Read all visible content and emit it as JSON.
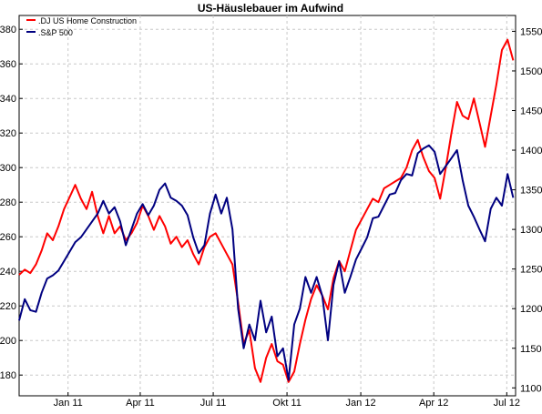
{
  "chart_data": {
    "type": "line",
    "title": "US-Häuslebauer im Aufwind",
    "x_tick_labels": [
      "Jan 11",
      "Apr 11",
      "Jul 11",
      "Okt 11",
      "Jan 12",
      "Apr 12",
      "Jul 12"
    ],
    "x_range": [
      "2010-11-01",
      "2012-07-12"
    ],
    "y_left": {
      "ylim": [
        168,
        388
      ],
      "ticks": [
        180,
        200,
        220,
        240,
        260,
        280,
        300,
        320,
        340,
        360,
        380
      ]
    },
    "y_right": {
      "ylim": [
        1090,
        1570
      ],
      "ticks": [
        1100,
        1150,
        1200,
        1250,
        1300,
        1350,
        1400,
        1450,
        1500,
        1550
      ]
    },
    "grid": true,
    "legend_position": "top-left",
    "series": [
      {
        "name": ".DJ US Home Construction",
        "axis": "left",
        "color": "#ff0000",
        "points": [
          [
            "2010-11-01",
            238
          ],
          [
            "2010-11-08",
            241
          ],
          [
            "2010-11-15",
            239
          ],
          [
            "2010-11-22",
            244
          ],
          [
            "2010-11-29",
            252
          ],
          [
            "2010-12-06",
            262
          ],
          [
            "2010-12-13",
            258
          ],
          [
            "2010-12-20",
            266
          ],
          [
            "2010-12-27",
            276
          ],
          [
            "2011-01-03",
            283
          ],
          [
            "2011-01-10",
            290
          ],
          [
            "2011-01-17",
            282
          ],
          [
            "2011-01-24",
            276
          ],
          [
            "2011-01-31",
            286
          ],
          [
            "2011-02-07",
            272
          ],
          [
            "2011-02-14",
            262
          ],
          [
            "2011-02-21",
            272
          ],
          [
            "2011-02-28",
            262
          ],
          [
            "2011-03-07",
            266
          ],
          [
            "2011-03-14",
            258
          ],
          [
            "2011-03-21",
            262
          ],
          [
            "2011-03-28",
            268
          ],
          [
            "2011-04-04",
            278
          ],
          [
            "2011-04-11",
            272
          ],
          [
            "2011-04-18",
            264
          ],
          [
            "2011-04-25",
            272
          ],
          [
            "2011-05-02",
            266
          ],
          [
            "2011-05-09",
            256
          ],
          [
            "2011-05-16",
            260
          ],
          [
            "2011-05-23",
            254
          ],
          [
            "2011-05-30",
            258
          ],
          [
            "2011-06-06",
            250
          ],
          [
            "2011-06-13",
            244
          ],
          [
            "2011-06-20",
            254
          ],
          [
            "2011-06-27",
            260
          ],
          [
            "2011-07-04",
            262
          ],
          [
            "2011-07-11",
            256
          ],
          [
            "2011-07-18",
            250
          ],
          [
            "2011-07-25",
            244
          ],
          [
            "2011-08-01",
            222
          ],
          [
            "2011-08-08",
            198
          ],
          [
            "2011-08-15",
            206
          ],
          [
            "2011-08-22",
            184
          ],
          [
            "2011-08-29",
            176
          ],
          [
            "2011-09-05",
            190
          ],
          [
            "2011-09-12",
            198
          ],
          [
            "2011-09-19",
            188
          ],
          [
            "2011-09-26",
            186
          ],
          [
            "2011-10-03",
            176
          ],
          [
            "2011-10-10",
            182
          ],
          [
            "2011-10-17",
            198
          ],
          [
            "2011-10-24",
            212
          ],
          [
            "2011-10-31",
            224
          ],
          [
            "2011-11-07",
            232
          ],
          [
            "2011-11-14",
            226
          ],
          [
            "2011-11-21",
            218
          ],
          [
            "2011-11-28",
            236
          ],
          [
            "2011-12-05",
            246
          ],
          [
            "2011-12-12",
            240
          ],
          [
            "2011-12-19",
            252
          ],
          [
            "2011-12-26",
            264
          ],
          [
            "2012-01-02",
            270
          ],
          [
            "2012-01-09",
            276
          ],
          [
            "2012-01-16",
            282
          ],
          [
            "2012-01-23",
            280
          ],
          [
            "2012-01-30",
            288
          ],
          [
            "2012-02-06",
            290
          ],
          [
            "2012-02-13",
            292
          ],
          [
            "2012-02-20",
            294
          ],
          [
            "2012-02-27",
            300
          ],
          [
            "2012-03-05",
            310
          ],
          [
            "2012-03-12",
            316
          ],
          [
            "2012-03-19",
            306
          ],
          [
            "2012-03-26",
            298
          ],
          [
            "2012-04-02",
            294
          ],
          [
            "2012-04-09",
            282
          ],
          [
            "2012-04-16",
            300
          ],
          [
            "2012-04-23",
            320
          ],
          [
            "2012-04-30",
            338
          ],
          [
            "2012-05-07",
            330
          ],
          [
            "2012-05-14",
            328
          ],
          [
            "2012-05-21",
            340
          ],
          [
            "2012-05-28",
            326
          ],
          [
            "2012-06-04",
            312
          ],
          [
            "2012-06-11",
            330
          ],
          [
            "2012-06-18",
            348
          ],
          [
            "2012-06-25",
            368
          ],
          [
            "2012-07-02",
            374
          ],
          [
            "2012-07-09",
            362
          ]
        ]
      },
      {
        "name": ".S&P 500",
        "axis": "right",
        "color": "#000080",
        "points": [
          [
            "2010-11-01",
            1185
          ],
          [
            "2010-11-08",
            1212
          ],
          [
            "2010-11-15",
            1198
          ],
          [
            "2010-11-22",
            1196
          ],
          [
            "2010-11-29",
            1220
          ],
          [
            "2010-12-06",
            1238
          ],
          [
            "2010-12-13",
            1242
          ],
          [
            "2010-12-20",
            1248
          ],
          [
            "2010-12-27",
            1260
          ],
          [
            "2011-01-03",
            1272
          ],
          [
            "2011-01-10",
            1284
          ],
          [
            "2011-01-17",
            1290
          ],
          [
            "2011-01-24",
            1300
          ],
          [
            "2011-01-31",
            1310
          ],
          [
            "2011-02-07",
            1320
          ],
          [
            "2011-02-14",
            1336
          ],
          [
            "2011-02-21",
            1320
          ],
          [
            "2011-02-28",
            1328
          ],
          [
            "2011-03-07",
            1310
          ],
          [
            "2011-03-14",
            1280
          ],
          [
            "2011-03-21",
            1300
          ],
          [
            "2011-03-28",
            1320
          ],
          [
            "2011-04-04",
            1332
          ],
          [
            "2011-04-11",
            1318
          ],
          [
            "2011-04-18",
            1330
          ],
          [
            "2011-04-25",
            1350
          ],
          [
            "2011-05-02",
            1358
          ],
          [
            "2011-05-09",
            1340
          ],
          [
            "2011-05-16",
            1336
          ],
          [
            "2011-05-23",
            1330
          ],
          [
            "2011-05-30",
            1318
          ],
          [
            "2011-06-06",
            1290
          ],
          [
            "2011-06-13",
            1270
          ],
          [
            "2011-06-20",
            1280
          ],
          [
            "2011-06-27",
            1320
          ],
          [
            "2011-07-04",
            1344
          ],
          [
            "2011-07-11",
            1320
          ],
          [
            "2011-07-18",
            1340
          ],
          [
            "2011-07-25",
            1300
          ],
          [
            "2011-08-01",
            1200
          ],
          [
            "2011-08-08",
            1150
          ],
          [
            "2011-08-15",
            1180
          ],
          [
            "2011-08-22",
            1160
          ],
          [
            "2011-08-29",
            1210
          ],
          [
            "2011-09-05",
            1170
          ],
          [
            "2011-09-12",
            1190
          ],
          [
            "2011-09-19",
            1140
          ],
          [
            "2011-09-26",
            1150
          ],
          [
            "2011-10-03",
            1110
          ],
          [
            "2011-10-10",
            1180
          ],
          [
            "2011-10-17",
            1200
          ],
          [
            "2011-10-24",
            1240
          ],
          [
            "2011-10-31",
            1220
          ],
          [
            "2011-11-07",
            1240
          ],
          [
            "2011-11-14",
            1216
          ],
          [
            "2011-11-21",
            1160
          ],
          [
            "2011-11-28",
            1230
          ],
          [
            "2011-12-05",
            1260
          ],
          [
            "2011-12-12",
            1220
          ],
          [
            "2011-12-19",
            1240
          ],
          [
            "2011-12-26",
            1262
          ],
          [
            "2012-01-02",
            1276
          ],
          [
            "2012-01-09",
            1290
          ],
          [
            "2012-01-16",
            1314
          ],
          [
            "2012-01-23",
            1316
          ],
          [
            "2012-01-30",
            1330
          ],
          [
            "2012-02-06",
            1344
          ],
          [
            "2012-02-13",
            1346
          ],
          [
            "2012-02-20",
            1362
          ],
          [
            "2012-02-27",
            1370
          ],
          [
            "2012-03-05",
            1368
          ],
          [
            "2012-03-12",
            1396
          ],
          [
            "2012-03-19",
            1402
          ],
          [
            "2012-03-26",
            1406
          ],
          [
            "2012-04-02",
            1398
          ],
          [
            "2012-04-09",
            1370
          ],
          [
            "2012-04-16",
            1380
          ],
          [
            "2012-04-23",
            1390
          ],
          [
            "2012-04-30",
            1400
          ],
          [
            "2012-05-07",
            1362
          ],
          [
            "2012-05-14",
            1330
          ],
          [
            "2012-05-21",
            1316
          ],
          [
            "2012-05-28",
            1300
          ],
          [
            "2012-06-04",
            1285
          ],
          [
            "2012-06-11",
            1326
          ],
          [
            "2012-06-18",
            1340
          ],
          [
            "2012-06-25",
            1330
          ],
          [
            "2012-07-02",
            1370
          ],
          [
            "2012-07-09",
            1340
          ]
        ]
      }
    ]
  }
}
